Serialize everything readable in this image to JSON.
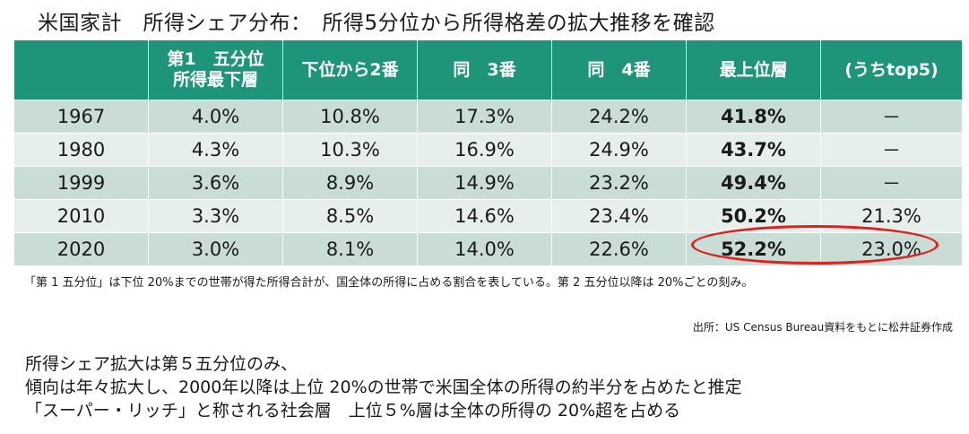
{
  "title": "米国家計　所得シェア分布：　所得5分位から所得格差の拡大推移を確認",
  "table": {
    "headers": [
      "",
      "第1　五分位\n所得最下層",
      "下位から2番",
      "同　3番",
      "同　4番",
      "最上位層",
      "(うちtop5)"
    ],
    "rows": [
      {
        "year": "1967",
        "q1": "4.0%",
        "q2": "10.8%",
        "q3": "17.3%",
        "q4": "24.2%",
        "top": "41.8%",
        "top5": "－"
      },
      {
        "year": "1980",
        "q1": "4.3%",
        "q2": "10.3%",
        "q3": "16.9%",
        "q4": "24.9%",
        "top": "43.7%",
        "top5": "－"
      },
      {
        "year": "1999",
        "q1": "3.6%",
        "q2": "8.9%",
        "q3": "14.9%",
        "q4": "23.2%",
        "top": "49.4%",
        "top5": "－"
      },
      {
        "year": "2010",
        "q1": "3.3%",
        "q2": "8.5%",
        "q3": "14.6%",
        "q4": "23.4%",
        "top": "50.2%",
        "top5": "21.3%"
      },
      {
        "year": "2020",
        "q1": "3.0%",
        "q2": "8.1%",
        "q3": "14.0%",
        "q4": "22.6%",
        "top": "52.2%",
        "top5": "23.0%"
      }
    ]
  },
  "footnote": "「第 1 五分位」は下位 20%までの世帯が得た所得合計が、国全体の所得に占める割合を表している。第 2 五分位以降は 20%ごとの刻み。",
  "source": "出所：US Census Bureau資料をもとに松井証券作成",
  "summary": [
    "所得シェア拡大は第５五分位のみ、",
    "傾向は年々拡大し、2000年以降は上位 20%の世帯で米国全体の所得の約半分を占めたと推定",
    "「スーパー・リッチ」と称される社会層　上位５%層は全体の所得の 20%超を占める"
  ],
  "colors": {
    "header_bg": "#1e957a",
    "row_dark": "#c9dcd6",
    "row_light": "#e7efec",
    "highlight": "#e0201b"
  }
}
